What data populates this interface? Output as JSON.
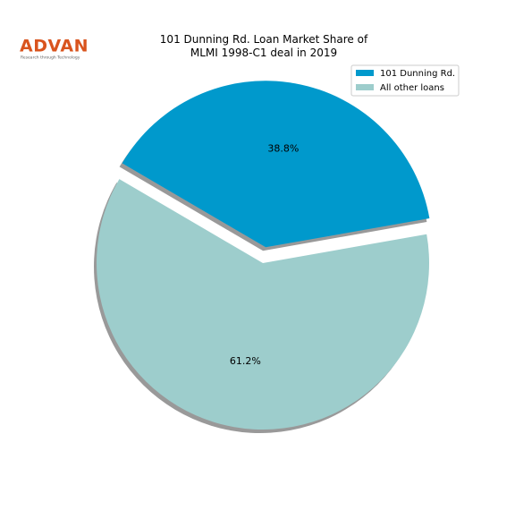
{
  "logo": {
    "name": "ADVAN",
    "tagline": "Research through Technology"
  },
  "chart_data": {
    "type": "pie",
    "title": "101 Dunning Rd. Loan Market Share of\nMLMI 1998-C1 deal in 2019",
    "categories": [
      "101 Dunning Rd.",
      "All other loans"
    ],
    "values": [
      38.8,
      61.2
    ],
    "value_labels": [
      "38.8%",
      "61.2%"
    ],
    "colors": [
      "#0099cc",
      "#9dcdcc"
    ],
    "legend": "upper right",
    "shadow": true
  }
}
